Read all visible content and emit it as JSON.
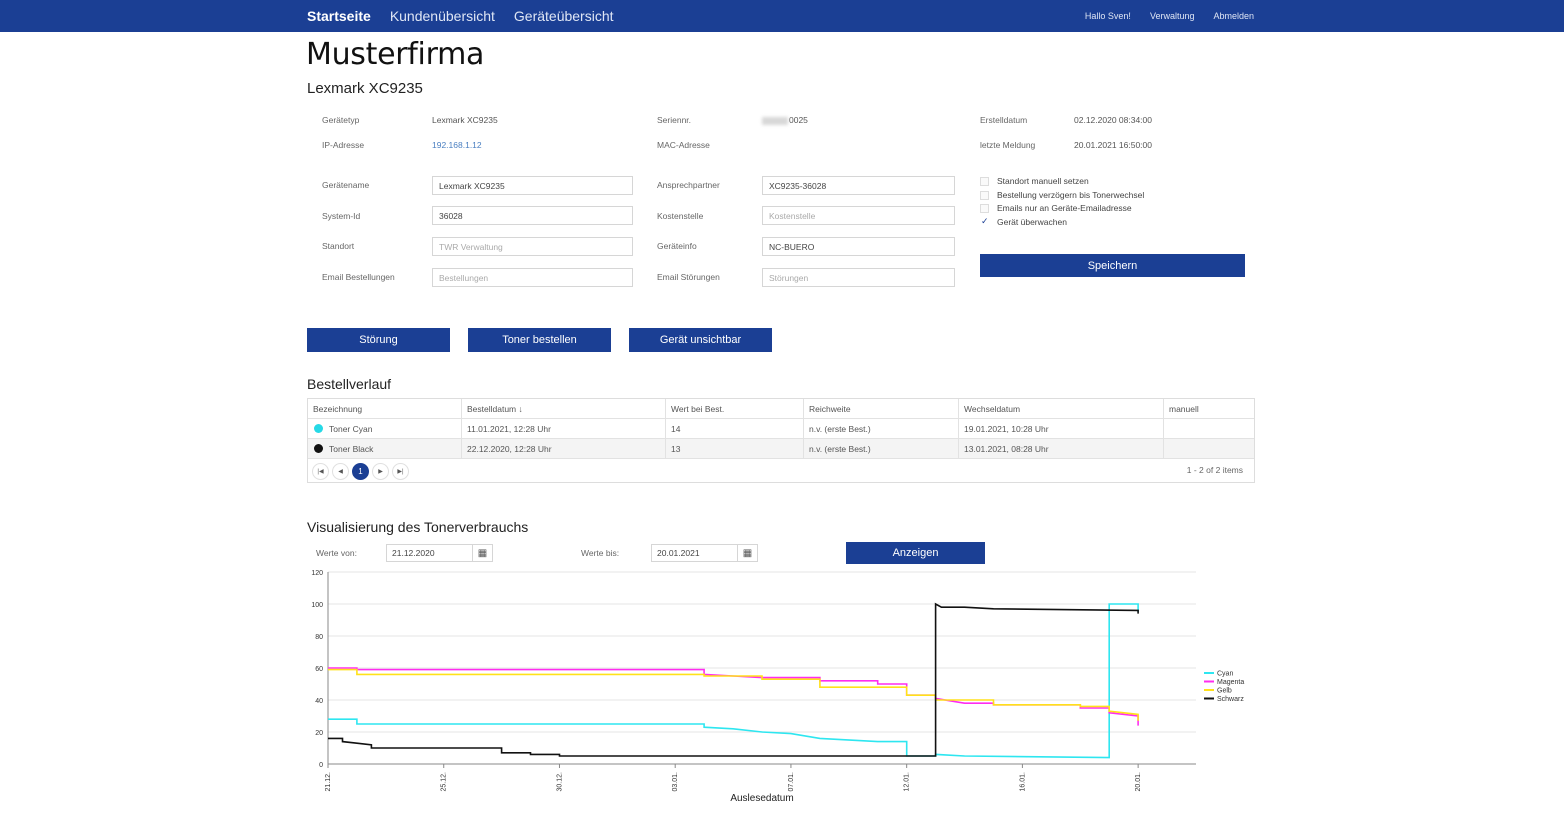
{
  "nav": {
    "brand": "Startseite",
    "items": [
      "Kundenübersicht",
      "Geräteübersicht"
    ],
    "right": [
      "Hallo Sven!",
      "Verwaltung",
      "Abmelden"
    ]
  },
  "company": "Musterfirma",
  "device_title": "Lexmark XC9235",
  "info": {
    "geraetetyp_label": "Gerätetyp",
    "geraetetyp": "Lexmark XC9235",
    "ip_label": "IP-Adresse",
    "ip": "192.168.1.12",
    "serien_label": "Seriennr.",
    "serien_suffix": "0025",
    "mac_label": "MAC-Adresse",
    "erstell_label": "Erstelldatum",
    "erstell": "02.12.2020 08:34:00",
    "meldung_label": "letzte Meldung",
    "meldung": "20.01.2021 16:50:00"
  },
  "form": {
    "geraetename_label": "Gerätename",
    "geraetename": "Lexmark XC9235",
    "systemid_label": "System-Id",
    "systemid": "36028",
    "standort_label": "Standort",
    "standort_placeholder": "TWR Verwaltung",
    "email_best_label": "Email Bestellungen",
    "email_best_placeholder": "Bestellungen",
    "ansprech_label": "Ansprechpartner",
    "ansprech": "XC9235-36028",
    "kosten_label": "Kostenstelle",
    "kosten_placeholder": "Kostenstelle",
    "geraeteinfo_label": "Geräteinfo",
    "geraeteinfo": "NC-BUERO",
    "email_stoer_label": "Email Störungen",
    "email_stoer_placeholder": "Störungen"
  },
  "checks": [
    {
      "label": "Standort manuell setzen",
      "checked": false
    },
    {
      "label": "Bestellung verzögern bis Tonerwechsel",
      "checked": false
    },
    {
      "label": "Emails nur an Geräte-Emailadresse",
      "checked": false
    },
    {
      "label": "Gerät überwachen",
      "checked": true
    }
  ],
  "buttons": {
    "save": "Speichern",
    "stoerung": "Störung",
    "toner": "Toner bestellen",
    "unsichtbar": "Gerät unsichtbar",
    "anzeigen": "Anzeigen"
  },
  "orders": {
    "title": "Bestellverlauf",
    "columns": [
      "Bezeichnung",
      "Bestelldatum ↓",
      "Wert bei Best.",
      "Reichweite",
      "Wechseldatum",
      "manuell"
    ],
    "rows": [
      {
        "color": "#26d9e6",
        "name": "Toner Cyan",
        "date": "11.01.2021, 12:28 Uhr",
        "value": "14",
        "range": "n.v. (erste Best.)",
        "change": "19.01.2021, 10:28 Uhr",
        "manual": ""
      },
      {
        "color": "#111111",
        "name": "Toner Black",
        "date": "22.12.2020, 12:28 Uhr",
        "value": "13",
        "range": "n.v. (erste Best.)",
        "change": "13.01.2021, 08:28 Uhr",
        "manual": ""
      }
    ],
    "page": "1",
    "info": "1 - 2 of 2 items"
  },
  "viz": {
    "title": "Visualisierung des Tonerverbrauchs",
    "from_label": "Werte von:",
    "from": "21.12.2020",
    "to_label": "Werte bis:",
    "to": "20.01.2021"
  },
  "chart_data": {
    "type": "line",
    "xlabel": "Auslesedatum",
    "ylim": [
      0,
      120
    ],
    "yticks": [
      0,
      20,
      40,
      60,
      80,
      100,
      120
    ],
    "xlim": [
      0,
      30
    ],
    "xticks": [
      {
        "x": 0,
        "label": "21.12."
      },
      {
        "x": 4,
        "label": "25.12."
      },
      {
        "x": 8,
        "label": "30.12."
      },
      {
        "x": 12,
        "label": "03.01."
      },
      {
        "x": 16,
        "label": "07.01."
      },
      {
        "x": 20,
        "label": "12.01."
      },
      {
        "x": 24,
        "label": "16.01."
      },
      {
        "x": 28,
        "label": "20.01."
      }
    ],
    "legend_position": "right",
    "series": [
      {
        "name": "Cyan",
        "color": "#2ee6f0",
        "points": [
          [
            0,
            28
          ],
          [
            1,
            28
          ],
          [
            1,
            25
          ],
          [
            13,
            25
          ],
          [
            13,
            23
          ],
          [
            14,
            22
          ],
          [
            15,
            20
          ],
          [
            16,
            19
          ],
          [
            17,
            16
          ],
          [
            19,
            14
          ],
          [
            20,
            14
          ],
          [
            20,
            5
          ],
          [
            21,
            5
          ],
          [
            21,
            6
          ],
          [
            22,
            5
          ],
          [
            27,
            4
          ],
          [
            27,
            100
          ],
          [
            28,
            100
          ],
          [
            28,
            95
          ]
        ]
      },
      {
        "name": "Magenta",
        "color": "#ff2df0",
        "points": [
          [
            0,
            60
          ],
          [
            1,
            60
          ],
          [
            1,
            59
          ],
          [
            13,
            59
          ],
          [
            13,
            56
          ],
          [
            14,
            55
          ],
          [
            15,
            54
          ],
          [
            17,
            54
          ],
          [
            17,
            52
          ],
          [
            19,
            52
          ],
          [
            19,
            50
          ],
          [
            20,
            50
          ],
          [
            20,
            43
          ],
          [
            21,
            43
          ],
          [
            21,
            41
          ],
          [
            22,
            38
          ],
          [
            23,
            38
          ],
          [
            23,
            37
          ],
          [
            26,
            37
          ],
          [
            26,
            35
          ],
          [
            27,
            35
          ],
          [
            27,
            32
          ],
          [
            28,
            30
          ],
          [
            28,
            24
          ]
        ]
      },
      {
        "name": "Gelb",
        "color": "#ffe11a",
        "points": [
          [
            0,
            59
          ],
          [
            1,
            59
          ],
          [
            1,
            56
          ],
          [
            13,
            56
          ],
          [
            13,
            55
          ],
          [
            15,
            55
          ],
          [
            15,
            53
          ],
          [
            17,
            53
          ],
          [
            17,
            48
          ],
          [
            20,
            48
          ],
          [
            20,
            43
          ],
          [
            21,
            43
          ],
          [
            21,
            40
          ],
          [
            23,
            40
          ],
          [
            23,
            37
          ],
          [
            26,
            37
          ],
          [
            26,
            36
          ],
          [
            27,
            36
          ],
          [
            27,
            33
          ],
          [
            28,
            31
          ],
          [
            28,
            27
          ]
        ]
      },
      {
        "name": "Schwarz",
        "color": "#111111",
        "points": [
          [
            0,
            16
          ],
          [
            0.5,
            16
          ],
          [
            0.5,
            14
          ],
          [
            1,
            13
          ],
          [
            1.5,
            12
          ],
          [
            1.5,
            10
          ],
          [
            6,
            10
          ],
          [
            6,
            7
          ],
          [
            7,
            7
          ],
          [
            7,
            6
          ],
          [
            8,
            6
          ],
          [
            8,
            5
          ],
          [
            21,
            5
          ],
          [
            21,
            100
          ],
          [
            21.2,
            98
          ],
          [
            22,
            98
          ],
          [
            23,
            97
          ],
          [
            28,
            96
          ],
          [
            28,
            94
          ]
        ]
      }
    ]
  }
}
